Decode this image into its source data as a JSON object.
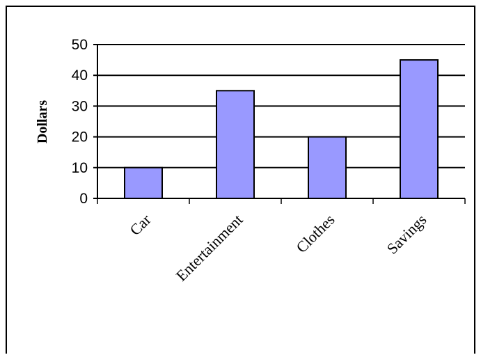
{
  "chart_data": {
    "type": "bar",
    "categories": [
      "Car",
      "Entertainment",
      "Clothes",
      "Savings"
    ],
    "values": [
      10,
      35,
      20,
      45
    ],
    "title": "",
    "xlabel": "",
    "ylabel": "Dollars",
    "ylim": [
      0,
      50
    ],
    "yticks": [
      0,
      10,
      20,
      30,
      40,
      50
    ],
    "grid": true,
    "legend": "none",
    "bar_color": "#9999ff",
    "bar_outline_color": "#000000",
    "grid_color": "#000000"
  }
}
